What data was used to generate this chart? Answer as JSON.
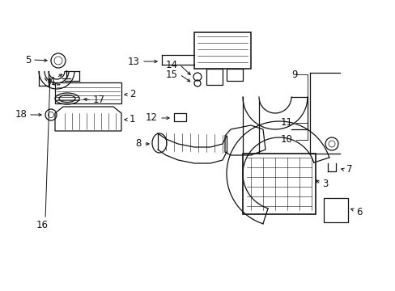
{
  "background_color": "#ffffff",
  "fig_width": 4.89,
  "fig_height": 3.6,
  "dpi": 100,
  "label_fs": 8.5,
  "lw": 0.9
}
